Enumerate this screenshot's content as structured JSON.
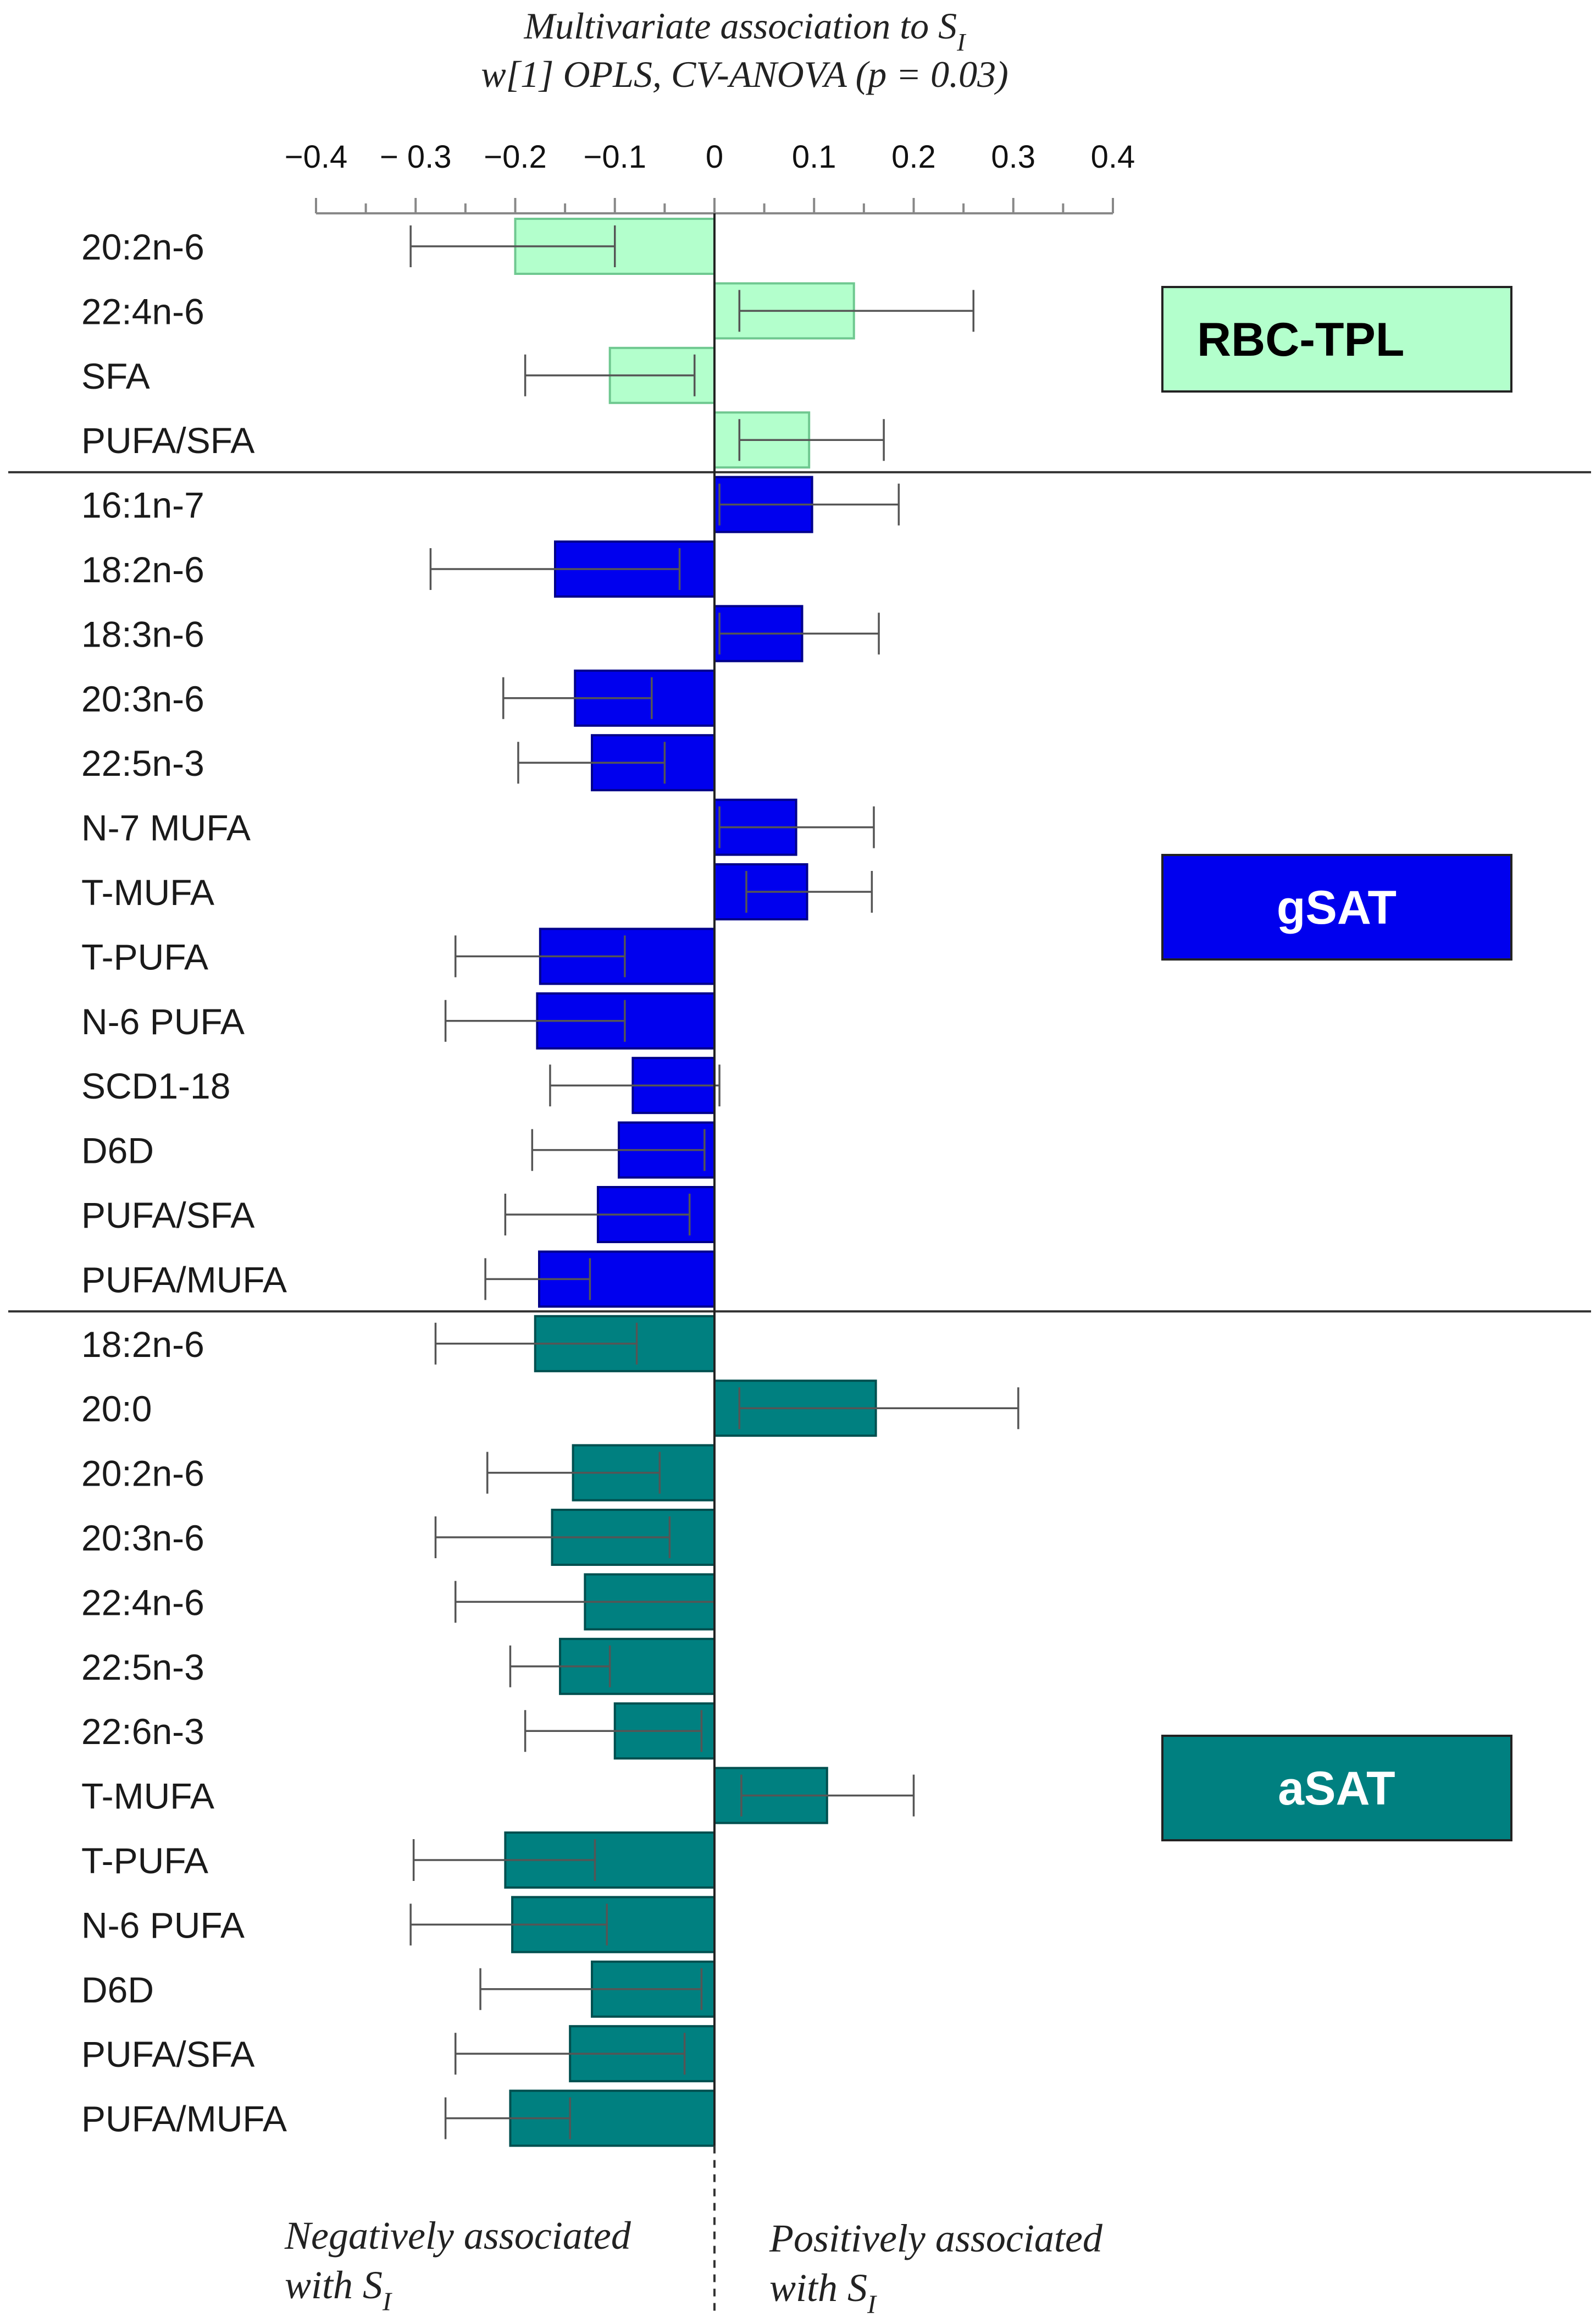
{
  "chart_data": {
    "type": "bar",
    "orientation": "horizontal",
    "title_lines": [
      "Multivariate association to S",
      "w[1] OPLS, CV-ANOVA (p = 0.03)"
    ],
    "title_subscript": "I",
    "xlim": [
      -0.4,
      0.4
    ],
    "xticks": [
      -0.4,
      -0.3,
      -0.2,
      -0.1,
      0,
      0.1,
      0.2,
      0.3,
      0.4
    ],
    "xtick_labels": [
      "−0.4",
      "− 0.3",
      "−0.2",
      "−0.1",
      "0",
      "0.1",
      "0.2",
      "0.3",
      "0.4"
    ],
    "footnote_negative": [
      "Negatively associated",
      "with S"
    ],
    "footnote_positive": [
      "Positively associated",
      "with  S"
    ],
    "footnote_subscript": "I",
    "groups": [
      {
        "name": "RBC-TPL",
        "fill": "#b3ffcc",
        "stroke": "#6fc890",
        "label_color": "#000000",
        "categories": [
          "20:2n-6",
          "22:4n-6",
          "SFA",
          "PUFA/SFA"
        ],
        "values": [
          -0.2,
          0.14,
          -0.105,
          0.095
        ],
        "error_low": [
          -0.305,
          0.025,
          -0.19,
          0.025
        ],
        "error_high": [
          -0.1,
          0.26,
          -0.02,
          0.17
        ]
      },
      {
        "name": "gSAT",
        "fill": "#0000ee",
        "stroke": "#00008a",
        "label_color": "#ffffff",
        "categories": [
          "16:1n-7",
          "18:2n-6",
          "18:3n-6",
          "20:3n-6",
          "22:5n-3",
          "N-7 MUFA",
          "T-MUFA",
          "T-PUFA",
          "N-6 PUFA",
          "SCD1-18",
          "D6D",
          "PUFA/SFA",
          "PUFA/MUFA"
        ],
        "values": [
          0.098,
          -0.16,
          0.088,
          -0.14,
          -0.123,
          0.082,
          0.093,
          -0.175,
          -0.178,
          -0.082,
          -0.096,
          -0.117,
          -0.176
        ],
        "error_low": [
          0.005,
          -0.285,
          0.005,
          -0.212,
          -0.197,
          0.005,
          0.032,
          -0.26,
          -0.27,
          -0.165,
          -0.183,
          -0.21,
          -0.23
        ],
        "error_high": [
          0.185,
          -0.035,
          0.165,
          -0.063,
          -0.05,
          0.16,
          0.158,
          -0.09,
          -0.09,
          0.005,
          -0.01,
          -0.025,
          -0.125
        ]
      },
      {
        "name": "aSAT",
        "fill": "#008080",
        "stroke": "#004f4f",
        "label_color": "#ffffff",
        "categories": [
          "18:2n-6",
          "20:0",
          "20:2n-6",
          "20:3n-6",
          "22:4n-6",
          "22:5n-3",
          "22:6n-3",
          "T-MUFA",
          "T-PUFA",
          "N-6 PUFA",
          "D6D",
          "PUFA/SFA",
          "PUFA/MUFA"
        ],
        "values": [
          -0.18,
          0.162,
          -0.142,
          -0.163,
          -0.13,
          -0.155,
          -0.1,
          0.113,
          -0.21,
          -0.203,
          -0.123,
          -0.145,
          -0.205
        ],
        "error_low": [
          -0.28,
          0.025,
          -0.228,
          -0.28,
          -0.26,
          -0.205,
          -0.19,
          0.027,
          -0.302,
          -0.305,
          -0.235,
          -0.26,
          -0.27
        ],
        "error_high": [
          -0.078,
          0.305,
          -0.055,
          -0.045,
          0.0,
          -0.105,
          -0.013,
          0.2,
          -0.12,
          -0.108,
          -0.013,
          -0.03,
          -0.145
        ]
      }
    ]
  }
}
